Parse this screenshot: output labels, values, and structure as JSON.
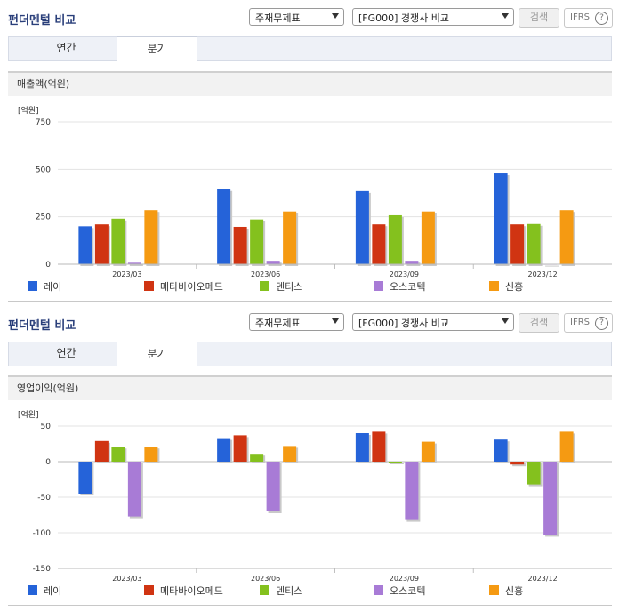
{
  "sections": [
    {
      "title": "펀더멘털 비교",
      "select1": "주재무제표",
      "select2": "[FG000] 경쟁사 비교",
      "search_label": "검색",
      "ifrs_label": "IFRS",
      "help_label": "?",
      "tabs": [
        {
          "label": "연간"
        },
        {
          "label": "분기"
        }
      ],
      "panel_title": "매출액(억원)",
      "unit_label": "[억원]"
    },
    {
      "title": "펀더멘털 비교",
      "select1": "주재무제표",
      "select2": "[FG000] 경쟁사 비교",
      "search_label": "검색",
      "ifrs_label": "IFRS",
      "help_label": "?",
      "tabs": [
        {
          "label": "연간"
        },
        {
          "label": "분기"
        }
      ],
      "panel_title": "영업이익(억원)",
      "unit_label": "[억원]"
    }
  ],
  "colors": {
    "레이": "#2563d9",
    "메타바이오메드": "#d03412",
    "덴티스": "#84c11e",
    "오스코텍": "#a87bd6",
    "신흥": "#f59a12"
  },
  "chart_data": [
    {
      "type": "bar",
      "ylabel": "[억원]",
      "categories": [
        "2023/03",
        "2023/06",
        "2023/09",
        "2023/12"
      ],
      "ylim": [
        0,
        750
      ],
      "yticks": [
        0,
        250,
        500,
        750
      ],
      "grid": true,
      "legend": "bottom",
      "series": [
        {
          "name": "레이",
          "values": [
            200,
            395,
            385,
            478
          ]
        },
        {
          "name": "메타바이오메드",
          "values": [
            210,
            197,
            210,
            210
          ]
        },
        {
          "name": "덴티스",
          "values": [
            240,
            236,
            258,
            212
          ]
        },
        {
          "name": "오스코텍",
          "values": [
            8,
            18,
            18,
            2
          ]
        },
        {
          "name": "신흥",
          "values": [
            285,
            278,
            278,
            285
          ]
        }
      ]
    },
    {
      "type": "bar",
      "ylabel": "[억원]",
      "categories": [
        "2023/03",
        "2023/06",
        "2023/09",
        "2023/12"
      ],
      "ylim": [
        -150,
        50
      ],
      "yticks": [
        -150,
        -100,
        -50,
        0,
        50
      ],
      "grid": true,
      "legend": "bottom",
      "series": [
        {
          "name": "레이",
          "values": [
            -45,
            33,
            40,
            31
          ]
        },
        {
          "name": "메타바이오메드",
          "values": [
            29,
            37,
            42,
            -4
          ]
        },
        {
          "name": "덴티스",
          "values": [
            21,
            11,
            -1,
            -32
          ]
        },
        {
          "name": "오스코텍",
          "values": [
            -77,
            -70,
            -82,
            -103
          ]
        },
        {
          "name": "신흥",
          "values": [
            21,
            22,
            28,
            42
          ]
        }
      ]
    }
  ]
}
